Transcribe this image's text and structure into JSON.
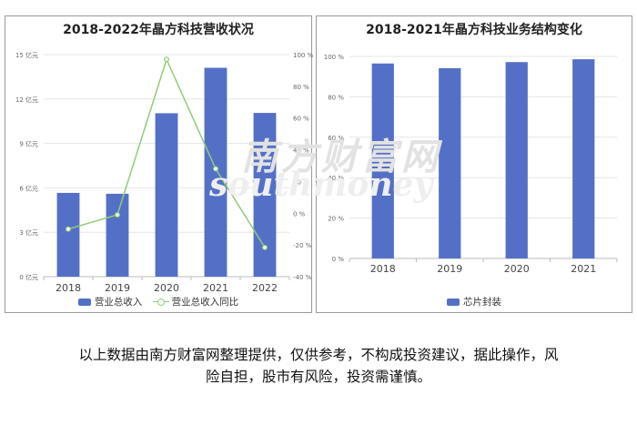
{
  "charts": {
    "left": {
      "title": "2018-2022年晶方科技营收状况",
      "legend": {
        "bar": "营业总收入",
        "line": "营业总收入同比"
      }
    },
    "right": {
      "title": "2018-2021年晶方科技业务结构变化",
      "legend": {
        "bar": "芯片封装"
      }
    }
  },
  "footer": {
    "line1": "以上数据由南方财富网整理提供，仅供参考，不构成投资建议，据此操作，风",
    "line2": "险自担，股市有风险，投资需谨慎。"
  },
  "watermark": {
    "cn": "南方财富网",
    "en": "southmoney"
  },
  "colors": {
    "bar": "#5470c6",
    "line": "#91cc75",
    "grid": "#e6e6e6",
    "axis_text": "#666666"
  },
  "chart_data": [
    {
      "type": "bar",
      "title": "2018-2022年晶方科技营收状况",
      "categories": [
        "2018",
        "2019",
        "2020",
        "2021",
        "2022"
      ],
      "series": [
        {
          "name": "营业总收入",
          "type": "bar",
          "axis": "left",
          "values": [
            5.66,
            5.6,
            11.04,
            14.11,
            11.06
          ]
        },
        {
          "name": "营业总收入同比",
          "type": "line",
          "axis": "right",
          "values": [
            -10.0,
            -1.0,
            97.0,
            28.0,
            -21.6
          ]
        }
      ],
      "y_left": {
        "ticks": [
          "0 亿元",
          "3 亿元",
          "6 亿元",
          "9 亿元",
          "12 亿元",
          "15 亿元"
        ],
        "ylim": [
          0,
          15
        ]
      },
      "y_right": {
        "ticks": [
          "-40 %",
          "-20 %",
          "0 %",
          "20 %",
          "40 %",
          "60 %",
          "80 %",
          "100 %"
        ],
        "ylim": [
          -40,
          100
        ]
      },
      "grid": true,
      "legend_position": "bottom"
    },
    {
      "type": "bar",
      "title": "2018-2021年晶方科技业务结构变化",
      "categories": [
        "2018",
        "2019",
        "2020",
        "2021"
      ],
      "series": [
        {
          "name": "芯片封装",
          "values": [
            96.5,
            94.2,
            97.2,
            98.6
          ]
        }
      ],
      "y": {
        "ticks": [
          "0 %",
          "20 %",
          "40 %",
          "60 %",
          "80 %",
          "100 %"
        ],
        "ylim": [
          0,
          100
        ]
      },
      "grid": true,
      "legend_position": "bottom"
    }
  ]
}
